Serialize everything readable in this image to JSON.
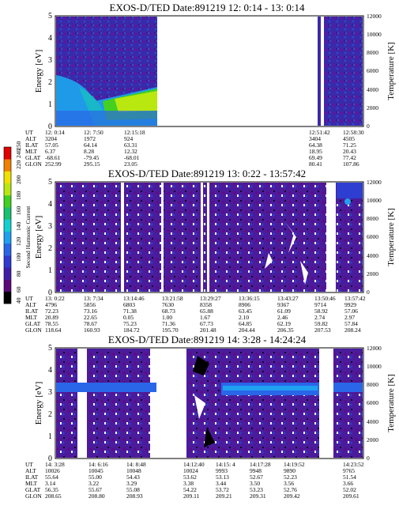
{
  "panels": [
    {
      "title": "EXOS-D/TED   Date:891219  12: 0:14 - 13: 0:14",
      "ylabel": "Energy [eV]",
      "y2label": "Temperature [K]",
      "yticks": [
        "0",
        "1",
        "2",
        "3",
        "4",
        "5"
      ],
      "y2ticks": [
        "0",
        "2000",
        "4000",
        "6000",
        "8000",
        "10000",
        "12000"
      ],
      "row_labels": [
        "UT",
        "ALT",
        "ILAT",
        "MLT",
        "GLAT",
        "GLON"
      ],
      "columns": [
        {
          "values": [
            "12: 0:14",
            "3204",
            "57.05",
            "6.37",
            "-68.61",
            "252.99"
          ]
        },
        {
          "values": [
            "12: 7:50",
            "1972",
            "64.14",
            "8.28",
            "-79.45",
            "295.15"
          ]
        },
        {
          "values": [
            "12:15:18",
            "924",
            "63.31",
            "12.32",
            "-68.01",
            "23.05"
          ]
        },
        {
          "values": [
            "12:51:42",
            "3404",
            "64.38",
            "18.95",
            "69.49",
            "80.41"
          ]
        },
        {
          "values": [
            "12:58:30",
            "4505",
            "71.25",
            "20.43",
            "77.42",
            "107.86"
          ]
        }
      ]
    },
    {
      "title": "EXOS-D/TED   Date:891219  13: 0:22 - 13:57:42",
      "ylabel": "Energy [eV]",
      "y2label": "Temperature [K]",
      "yticks": [
        "0",
        "1",
        "2",
        "3",
        "4",
        "5"
      ],
      "y2ticks": [
        "0",
        "2000",
        "4000",
        "6000",
        "8000",
        "10000",
        "12000"
      ],
      "row_labels": [
        "UT",
        "ALT",
        "ILAT",
        "MLT",
        "GLAT",
        "GLON"
      ],
      "columns": [
        {
          "values": [
            "13: 0:22",
            "4796",
            "72.23",
            "20.89",
            "78.55",
            "118.64"
          ]
        },
        {
          "values": [
            "13: 7:34",
            "5856",
            "73.16",
            "22.65",
            "78.67",
            "160.93"
          ]
        },
        {
          "values": [
            "13:14:46",
            "6803",
            "71.38",
            "0.05",
            "75.23",
            "184.72"
          ]
        },
        {
          "values": [
            "13:21:58",
            "7630",
            "68.73",
            "1.00",
            "71.36",
            "195.70"
          ]
        },
        {
          "values": [
            "13:29:27",
            "8358",
            "65.88",
            "1.67",
            "67.73",
            "201.48"
          ]
        },
        {
          "values": [
            "13:36:15",
            "8906",
            "63.45",
            "2.10",
            "64.85",
            "204.44"
          ]
        },
        {
          "values": [
            "13:43:27",
            "9367",
            "61.09",
            "2.46",
            "62.19",
            "206.35"
          ]
        },
        {
          "values": [
            "13:50:46",
            "9714",
            "58.92",
            "2.74",
            "59.82",
            "207.53"
          ]
        },
        {
          "values": [
            "13:57:42",
            "9929",
            "57.06",
            "2.97",
            "57.84",
            "208.24"
          ]
        }
      ]
    },
    {
      "title": "EXOS-D/TED   Date:891219  14: 3:28 - 14:24:24",
      "ylabel": "Energy [eV]",
      "y2label": "Temperature [K]",
      "yticks": [
        "0",
        "1",
        "2",
        "3",
        "4",
        "5"
      ],
      "y2ticks": [
        "0",
        "2000",
        "4000",
        "6000",
        "8000",
        "10000",
        "12000"
      ],
      "row_labels": [
        "UT",
        "ALT",
        "ILAT",
        "MLT",
        "GLAT",
        "GLON"
      ],
      "columns": [
        {
          "values": [
            "14: 3:28",
            "10026",
            "55.64",
            "3.14",
            "56.35",
            "208.65"
          ]
        },
        {
          "values": [
            "14: 6:16",
            "10045",
            "55.00",
            "3.22",
            "55.67",
            "208.80"
          ]
        },
        {
          "values": [
            "14: 8:48",
            "10048",
            "54.43",
            "3.29",
            "55.08",
            "208.93"
          ]
        },
        {
          "values": [
            "14:12:40",
            "10024",
            "53.62",
            "3.38",
            "54.22",
            "209.11"
          ]
        },
        {
          "values": [
            "14:15: 4",
            "9993",
            "53.13",
            "3.44",
            "53.72",
            "209.21"
          ]
        },
        {
          "values": [
            "14:17:28",
            "9948",
            "52.67",
            "3.50",
            "53.23",
            "209.31"
          ]
        },
        {
          "values": [
            "14:19:52",
            "9890",
            "52.23",
            "3.56",
            "52.76",
            "209.42"
          ]
        },
        {
          "values": [
            "14:23:52",
            "9765",
            "51.54",
            "3.66",
            "52.02",
            "209.61"
          ]
        }
      ]
    }
  ],
  "colorbar": {
    "label": "Second Harmonic Current",
    "ticks": [
      "40",
      "60",
      "80",
      "100",
      "120",
      "140",
      "160",
      "180",
      "200",
      "220",
      "240",
      "250"
    ],
    "colors": [
      "#000000",
      "#5a0a7a",
      "#3f1fa8",
      "#2f3ad0",
      "#2a66e8",
      "#1fa0f0",
      "#12d0d0",
      "#18c070",
      "#40d020",
      "#b8e810",
      "#f0e000",
      "#f08000",
      "#e00000"
    ]
  },
  "chart_data": [
    {
      "type": "heatmap",
      "title": "EXOS-D/TED   Date:891219  12: 0:14 - 13: 0:14",
      "xlabel": "UT",
      "ylabel": "Energy [eV]",
      "y2label": "Temperature [K]",
      "ylim": [
        0,
        5
      ],
      "y2lim": [
        0,
        12000
      ],
      "x_ticks": [
        "12: 0:14",
        "12: 7:50",
        "12:15:18",
        "12:51:42",
        "12:58:30"
      ],
      "colorscale_label": "Second Harmonic Current",
      "zlim": [
        40,
        250
      ],
      "data_gaps": [
        [
          "12:17",
          "12:51"
        ],
        [
          "12:53",
          "12:56"
        ]
      ]
    },
    {
      "type": "heatmap",
      "title": "EXOS-D/TED   Date:891219  13: 0:22 - 13:57:42",
      "xlabel": "UT",
      "ylabel": "Energy [eV]",
      "y2label": "Temperature [K]",
      "ylim": [
        0,
        5
      ],
      "y2lim": [
        0,
        12000
      ],
      "x_ticks": [
        "13: 0:22",
        "13: 7:34",
        "13:14:46",
        "13:21:58",
        "13:29:27",
        "13:36:15",
        "13:43:27",
        "13:50:46",
        "13:57:42"
      ],
      "colorscale_label": "Second Harmonic Current",
      "zlim": [
        40,
        250
      ]
    },
    {
      "type": "heatmap",
      "title": "EXOS-D/TED   Date:891219  14: 3:28 - 14:24:24",
      "xlabel": "UT",
      "ylabel": "Energy [eV]",
      "y2label": "Temperature [K]",
      "ylim": [
        0,
        5
      ],
      "y2lim": [
        0,
        12000
      ],
      "x_ticks": [
        "14: 3:28",
        "14: 6:16",
        "14: 8:48",
        "14:12:40",
        "14:15: 4",
        "14:17:28",
        "14:19:52",
        "14:23:52"
      ],
      "colorscale_label": "Second Harmonic Current",
      "zlim": [
        40,
        250
      ]
    }
  ]
}
